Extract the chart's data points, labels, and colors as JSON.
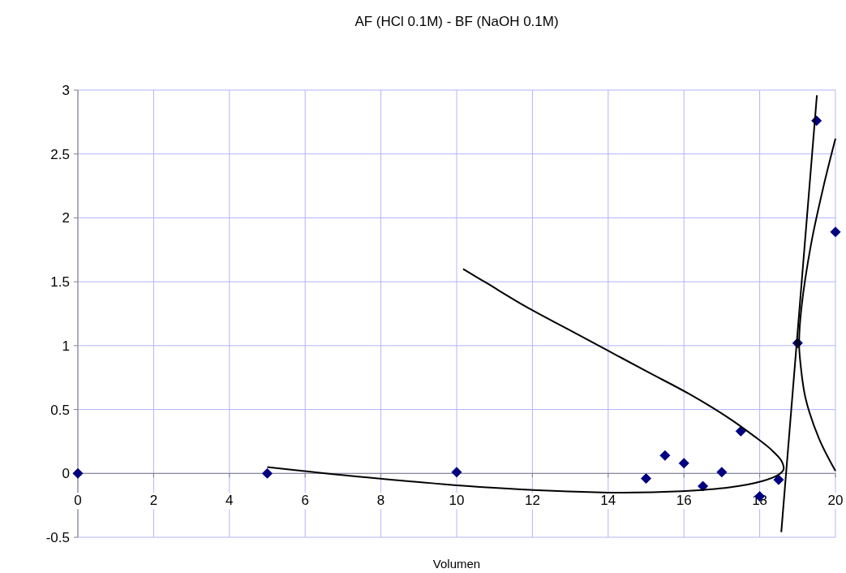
{
  "chart_data": {
    "type": "scatter",
    "title": "AF (HCl 0.1M) - BF (NaOH 0.1M)",
    "xlabel": "Volumen",
    "xlim": [
      0,
      20
    ],
    "xticks": [
      0,
      2,
      4,
      6,
      8,
      10,
      12,
      14,
      16,
      18,
      20
    ],
    "ylim": [
      -0.5,
      3
    ],
    "yticks": [
      -0.5,
      0,
      0.5,
      1,
      1.5,
      2,
      2.5,
      3
    ],
    "grid": true,
    "marker": "diamond",
    "series": [
      {
        "color": "#000080",
        "x": [
          0,
          5,
          10,
          15,
          15.5,
          16,
          16.5,
          17,
          17.5,
          18,
          18.5,
          19,
          19.5,
          20
        ],
        "values": [
          0,
          0,
          0.01,
          -0.04,
          0.14,
          0.08,
          -0.1,
          0.01,
          0.33,
          -0.18,
          -0.05,
          1.02,
          2.76,
          1.89
        ]
      },
      {
        "type": "line",
        "color": "#000000",
        "marker": "none",
        "x": [
          5,
          7.58,
          10.8,
          14,
          15.93,
          17.2,
          18.07,
          18.5,
          18.63,
          18.57,
          18.29,
          17.86,
          17.2,
          16.15,
          15.07,
          14,
          12.93,
          11.86,
          10.79,
          10.17
        ],
        "values": [
          0.05,
          -0.03,
          -0.11,
          -0.15,
          -0.14,
          -0.11,
          -0.06,
          -0.01,
          0.03,
          0.1,
          0.19,
          0.29,
          0.43,
          0.62,
          0.79,
          0.96,
          1.13,
          1.3,
          1.49,
          1.6
        ]
      },
      {
        "type": "line",
        "color": "#000000",
        "marker": "none",
        "x": [
          18.57,
          19.51
        ],
        "values": [
          -0.46,
          2.96
        ]
      },
      {
        "type": "line",
        "color": "#000000",
        "marker": "none",
        "x": [
          20,
          19.57,
          19.21,
          19.06,
          19.04,
          19.1,
          19.36,
          19.68,
          20
        ],
        "values": [
          0.02,
          0.27,
          0.59,
          0.91,
          1.02,
          1.29,
          1.8,
          2.24,
          2.62
        ]
      }
    ]
  }
}
